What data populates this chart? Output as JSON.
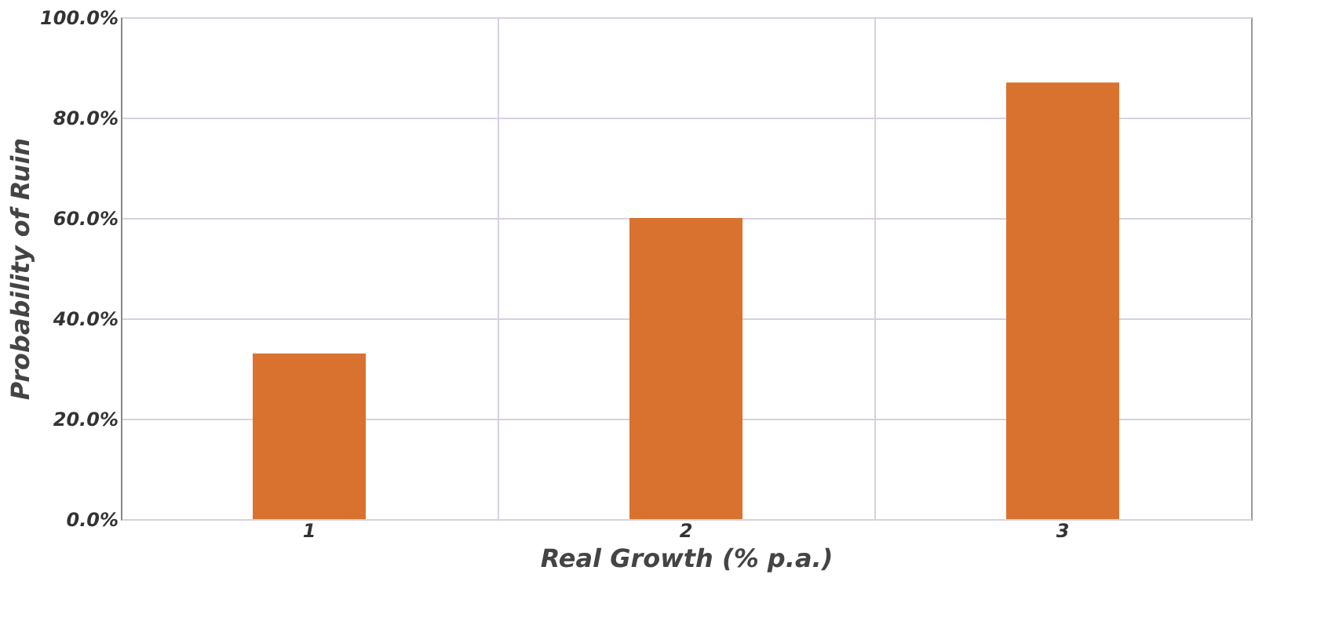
{
  "chart_data": {
    "type": "bar",
    "xlabel": "Real Growth (% p.a.)",
    "ylabel": "Probability of Ruin",
    "categories": [
      "1",
      "2",
      "3"
    ],
    "values": [
      33,
      60,
      87
    ],
    "color": "#d9722e",
    "ylim": [
      0,
      100
    ],
    "yticks": [
      {
        "value": 0,
        "label": "0.0%"
      },
      {
        "value": 20,
        "label": "20.0%"
      },
      {
        "value": 40,
        "label": "40.0%"
      },
      {
        "value": 60,
        "label": "60.0%"
      },
      {
        "value": 80,
        "label": "80.0%"
      },
      {
        "value": 100,
        "label": "100.0%"
      }
    ],
    "grid": true
  }
}
